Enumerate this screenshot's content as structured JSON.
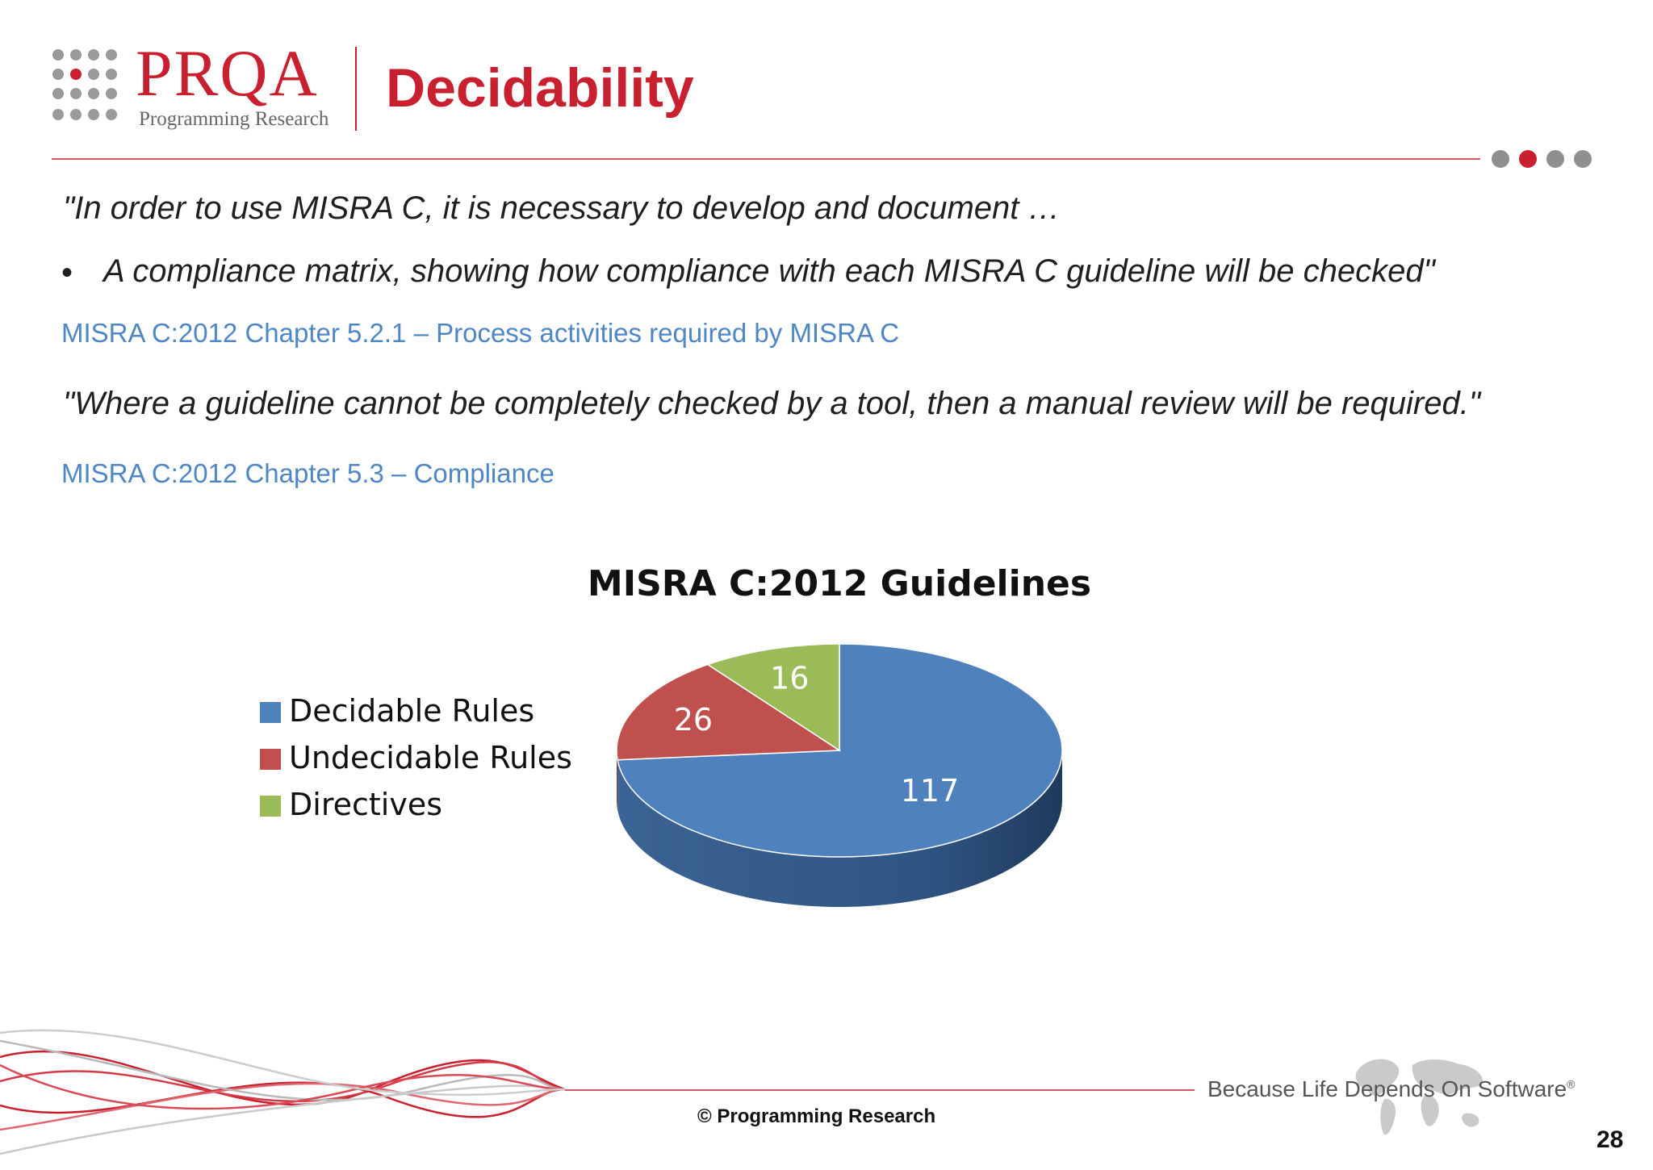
{
  "header": {
    "logo_text": "PRQA",
    "logo_subtitle": "Programming Research",
    "title": "Decidability"
  },
  "body": {
    "quote1": "\"In order to use MISRA C, it is necessary to develop and document …",
    "bullet_char": "•",
    "quote1_bullet": "A compliance matrix, showing how compliance with each MISRA C guideline will be checked\"",
    "ref1": "MISRA C:2012 Chapter 5.2.1 – Process activities required by MISRA C",
    "quote2": "\"Where a guideline cannot be completely checked by a tool, then a manual review will be required.\"",
    "ref2": "MISRA C:2012 Chapter 5.3 – Compliance"
  },
  "chart_data": {
    "type": "pie",
    "title": "MISRA C:2012 Guidelines",
    "legend_position": "left",
    "categories": [
      "Decidable Rules",
      "Undecidable Rules",
      "Directives"
    ],
    "values": [
      117,
      26,
      16
    ],
    "colors": [
      "#4f81bd",
      "#c0504d",
      "#9bbb59"
    ],
    "data_labels": true,
    "style": "3d"
  },
  "footer": {
    "copyright": "© Programming Research",
    "tagline": "Because Life Depends On Software",
    "tagline_mark": "®",
    "page_number": "28"
  }
}
